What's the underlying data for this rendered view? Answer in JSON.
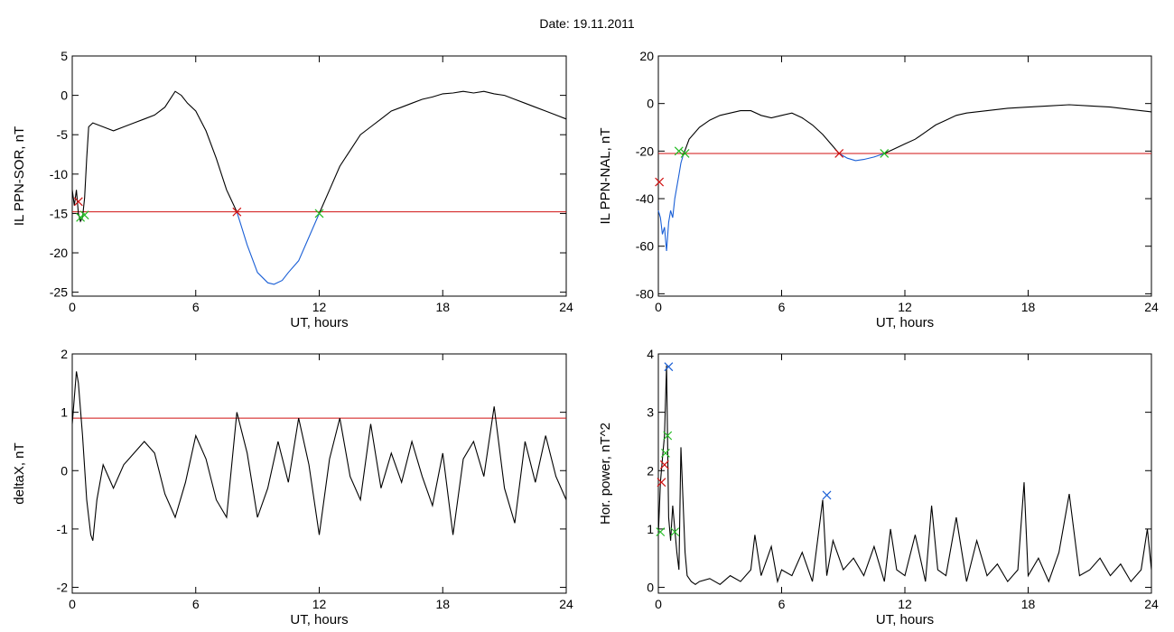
{
  "page": {
    "title": "Date:  19.11.2011"
  },
  "chart_data": [
    {
      "type": "line",
      "title": "",
      "xlabel": "UT, hours",
      "ylabel": "IL PPN-SOR, nT",
      "xlim": [
        0,
        24
      ],
      "ylim": [
        -25.5,
        5
      ],
      "xticks": [
        "0",
        "6",
        "12",
        "18",
        "24"
      ],
      "yticks": [
        "5",
        "0",
        "-5",
        "-10",
        "-15",
        "-20",
        "-25"
      ],
      "threshold": -14.8,
      "series": [
        {
          "color": "#000000",
          "x": [
            0,
            0.1,
            0.2,
            0.3,
            0.4,
            0.5,
            0.6,
            0.7,
            0.8,
            1.0,
            1.5,
            2.0,
            2.5,
            3.0,
            3.5,
            4.0,
            4.5,
            5.0,
            5.3,
            5.6,
            6.0,
            6.5,
            7.0,
            7.5,
            8.0
          ],
          "y": [
            -12,
            -14,
            -12,
            -15,
            -16,
            -15.5,
            -13,
            -8,
            -4,
            -3.5,
            -4,
            -4.5,
            -4,
            -3.5,
            -3,
            -2.5,
            -1.5,
            0.5,
            0,
            -1,
            -2,
            -4.5,
            -8,
            -12,
            -14.8
          ]
        },
        {
          "color": "#1a5fd6",
          "x": [
            8.0,
            8.5,
            9.0,
            9.5,
            9.8,
            10.2,
            10.5,
            11.0,
            11.5,
            12.0
          ],
          "y": [
            -14.8,
            -19,
            -22.5,
            -23.8,
            -24,
            -23.5,
            -22.5,
            -21,
            -18,
            -15
          ]
        },
        {
          "color": "#000000",
          "x": [
            12.0,
            12.5,
            13.0,
            13.5,
            14.0,
            14.5,
            15.0,
            15.5,
            16.0,
            16.5,
            17.0,
            17.5,
            18.0,
            18.5,
            19.0,
            19.5,
            20.0,
            20.5,
            21.0,
            21.5,
            22.0,
            22.5,
            23.0,
            23.5,
            24.0
          ],
          "y": [
            -15,
            -12,
            -9,
            -7,
            -5,
            -4,
            -3,
            -2,
            -1.5,
            -1,
            -0.5,
            -0.2,
            0.2,
            0.3,
            0.5,
            0.3,
            0.5,
            0.2,
            0,
            -0.5,
            -1,
            -1.5,
            -2,
            -2.5,
            -3
          ]
        }
      ],
      "markers": [
        {
          "x": 0.3,
          "y": -13.5,
          "color": "#d01010"
        },
        {
          "x": 8.0,
          "y": -14.8,
          "color": "#d01010"
        },
        {
          "x": 0.4,
          "y": -15.5,
          "color": "#22bb22"
        },
        {
          "x": 0.6,
          "y": -15.2,
          "color": "#22bb22"
        },
        {
          "x": 12.0,
          "y": -15.0,
          "color": "#22bb22"
        }
      ]
    },
    {
      "type": "line",
      "title": "",
      "xlabel": "UT, hours",
      "ylabel": "IL PPN-NAL, nT",
      "xlim": [
        0,
        24
      ],
      "ylim": [
        -81,
        20
      ],
      "xticks": [
        "0",
        "6",
        "12",
        "18",
        "24"
      ],
      "yticks": [
        "20",
        "0",
        "-20",
        "-40",
        "-60",
        "-80"
      ],
      "threshold": -21,
      "series": [
        {
          "color": "#1a5fd6",
          "x": [
            0,
            0.1,
            0.2,
            0.3,
            0.4,
            0.5,
            0.6,
            0.7,
            0.8,
            0.9,
            1.0,
            1.1,
            1.2
          ],
          "y": [
            -45,
            -48,
            -55,
            -52,
            -62,
            -50,
            -45,
            -48,
            -40,
            -35,
            -30,
            -25,
            -22
          ]
        },
        {
          "color": "#000000",
          "x": [
            1.2,
            1.5,
            2.0,
            2.5,
            3.0,
            3.5,
            4.0,
            4.5,
            5.0,
            5.5,
            6.0,
            6.5,
            7.0,
            7.5,
            8.0,
            8.5,
            8.8
          ],
          "y": [
            -22,
            -15,
            -10,
            -7,
            -5,
            -4,
            -3,
            -3,
            -5,
            -6,
            -5,
            -4,
            -6,
            -9,
            -13,
            -18,
            -21
          ]
        },
        {
          "color": "#1a5fd6",
          "x": [
            8.8,
            9.2,
            9.6,
            10.0,
            10.5,
            11.0
          ],
          "y": [
            -21,
            -23,
            -24,
            -23.5,
            -22.5,
            -21
          ]
        },
        {
          "color": "#000000",
          "x": [
            11.0,
            11.5,
            12.0,
            12.5,
            13.0,
            13.5,
            14.0,
            14.5,
            15.0,
            16.0,
            17.0,
            18.0,
            19.0,
            20.0,
            21.0,
            22.0,
            23.0,
            24.0
          ],
          "y": [
            -21,
            -19,
            -17,
            -15,
            -12,
            -9,
            -7,
            -5,
            -4,
            -3,
            -2,
            -1.5,
            -1,
            -0.5,
            -1,
            -1.5,
            -2.5,
            -3.5
          ]
        }
      ],
      "markers": [
        {
          "x": 0.05,
          "y": -33,
          "color": "#d01010"
        },
        {
          "x": 8.8,
          "y": -21,
          "color": "#d01010"
        },
        {
          "x": 1.0,
          "y": -20,
          "color": "#22bb22"
        },
        {
          "x": 1.3,
          "y": -21,
          "color": "#22bb22"
        },
        {
          "x": 11.0,
          "y": -21,
          "color": "#22bb22"
        }
      ]
    },
    {
      "type": "line",
      "title": "",
      "xlabel": "UT, hours",
      "ylabel": "deltaX, nT",
      "xlim": [
        0,
        24
      ],
      "ylim": [
        -2.1,
        2
      ],
      "xticks": [
        "0",
        "6",
        "12",
        "18",
        "24"
      ],
      "yticks": [
        "2",
        "1",
        "0",
        "-1",
        "-2"
      ],
      "threshold": 0.9,
      "series": [
        {
          "color": "#000000",
          "x": [
            0,
            0.2,
            0.3,
            0.5,
            0.7,
            0.9,
            1.0,
            1.2,
            1.5,
            2.0,
            2.5,
            3.0,
            3.5,
            4.0,
            4.5,
            5.0,
            5.5,
            6.0,
            6.5,
            7.0,
            7.5,
            8.0,
            8.5,
            9.0,
            9.5,
            10.0,
            10.5,
            11.0,
            11.5,
            12.0,
            12.5,
            13.0,
            13.5,
            14.0,
            14.5,
            15.0,
            15.5,
            16.0,
            16.5,
            17.0,
            17.5,
            18.0,
            18.5,
            19.0,
            19.5,
            20.0,
            20.5,
            21.0,
            21.5,
            22.0,
            22.5,
            23.0,
            23.5,
            24.0
          ],
          "y": [
            0.8,
            1.7,
            1.5,
            0.6,
            -0.5,
            -1.1,
            -1.2,
            -0.5,
            0.1,
            -0.3,
            0.1,
            0.3,
            0.5,
            0.3,
            -0.4,
            -0.8,
            -0.2,
            0.6,
            0.2,
            -0.5,
            -0.8,
            1.0,
            0.3,
            -0.8,
            -0.3,
            0.5,
            -0.2,
            0.9,
            0.1,
            -1.1,
            0.2,
            0.9,
            -0.1,
            -0.5,
            0.8,
            -0.3,
            0.3,
            -0.2,
            0.5,
            -0.1,
            -0.6,
            0.3,
            -1.1,
            0.2,
            0.5,
            -0.1,
            1.1,
            -0.3,
            -0.9,
            0.5,
            -0.2,
            0.6,
            -0.1,
            -0.5
          ]
        }
      ],
      "markers": []
    },
    {
      "type": "line",
      "title": "",
      "xlabel": "UT, hours",
      "ylabel": "Hor. power, nT^2",
      "xlim": [
        0,
        24
      ],
      "ylim": [
        -0.1,
        4
      ],
      "xticks": [
        "0",
        "6",
        "12",
        "18",
        "24"
      ],
      "yticks": [
        "4",
        "3",
        "2",
        "1",
        "0"
      ],
      "threshold": null,
      "series": [
        {
          "color": "#000000",
          "x": [
            0,
            0.1,
            0.2,
            0.3,
            0.4,
            0.5,
            0.6,
            0.7,
            0.8,
            0.9,
            1.0,
            1.1,
            1.2,
            1.3,
            1.4,
            1.6,
            1.8,
            2.0,
            2.5,
            3.0,
            3.5,
            4.0,
            4.5,
            4.7,
            5.0,
            5.5,
            5.8,
            6.0,
            6.5,
            7.0,
            7.5,
            8.0,
            8.2,
            8.5,
            9.0,
            9.5,
            10.0,
            10.5,
            11.0,
            11.3,
            11.6,
            12.0,
            12.5,
            13.0,
            13.3,
            13.6,
            14.0,
            14.5,
            15.0,
            15.5,
            16.0,
            16.5,
            17.0,
            17.5,
            17.8,
            18.0,
            18.5,
            19.0,
            19.5,
            20.0,
            20.5,
            21.0,
            21.5,
            22.0,
            22.5,
            23.0,
            23.5,
            23.8,
            24.0
          ],
          "y": [
            0.9,
            1.8,
            2.2,
            2.6,
            3.8,
            1.2,
            0.8,
            1.4,
            1.0,
            0.6,
            0.3,
            2.4,
            1.5,
            0.6,
            0.2,
            0.1,
            0.05,
            0.1,
            0.15,
            0.05,
            0.2,
            0.1,
            0.3,
            0.9,
            0.2,
            0.7,
            0.1,
            0.3,
            0.2,
            0.6,
            0.1,
            1.5,
            0.2,
            0.8,
            0.3,
            0.5,
            0.2,
            0.7,
            0.1,
            1.0,
            0.3,
            0.2,
            0.9,
            0.1,
            1.4,
            0.3,
            0.2,
            1.2,
            0.1,
            0.8,
            0.2,
            0.4,
            0.1,
            0.3,
            1.8,
            0.2,
            0.5,
            0.1,
            0.6,
            1.6,
            0.2,
            0.3,
            0.5,
            0.2,
            0.4,
            0.1,
            0.3,
            1.0,
            0.3
          ]
        }
      ],
      "markers": [
        {
          "x": 0.5,
          "y": 3.78,
          "color": "#1a5fd6"
        },
        {
          "x": 8.2,
          "y": 1.58,
          "color": "#1a5fd6"
        },
        {
          "x": 0.3,
          "y": 2.1,
          "color": "#d01010"
        },
        {
          "x": 0.15,
          "y": 1.8,
          "color": "#d01010"
        },
        {
          "x": 0.45,
          "y": 2.6,
          "color": "#22bb22"
        },
        {
          "x": 0.35,
          "y": 2.3,
          "color": "#22bb22"
        },
        {
          "x": 0.8,
          "y": 0.95,
          "color": "#22bb22"
        },
        {
          "x": 0.1,
          "y": 0.95,
          "color": "#22bb22"
        }
      ]
    }
  ]
}
